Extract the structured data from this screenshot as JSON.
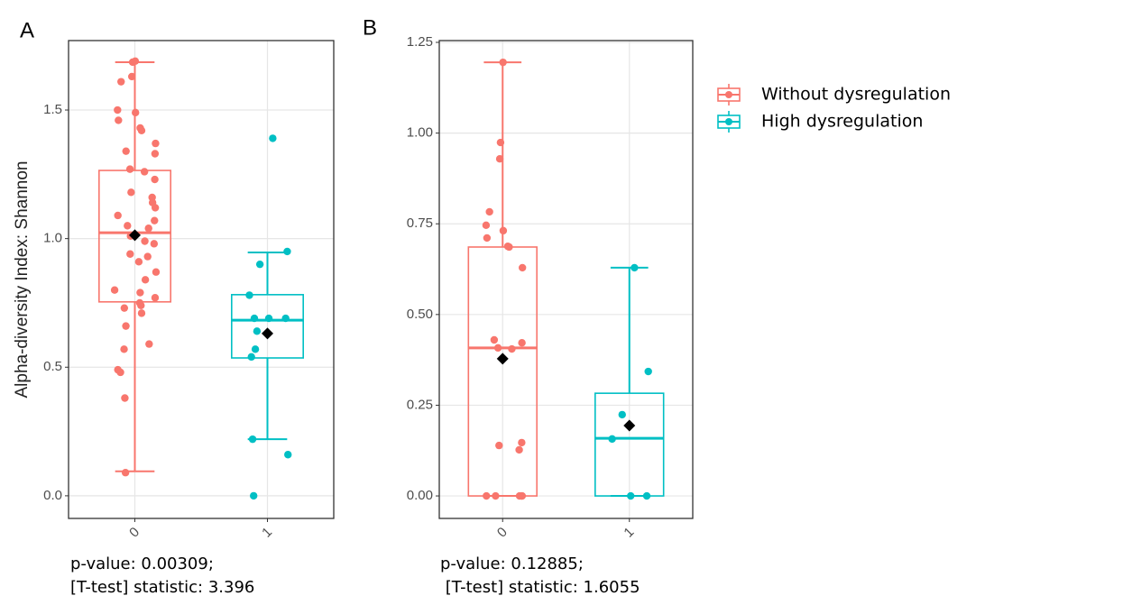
{
  "chart_data": [
    {
      "type": "box",
      "label": "A",
      "ylabel": "Alpha-diversity Index: Shannon",
      "categories": [
        "0",
        "1"
      ],
      "ylim": [
        -0.088,
        1.77
      ],
      "yticks": [
        {
          "value": 0,
          "label": "0.0"
        },
        {
          "value": 0.5,
          "label": "0.5"
        },
        {
          "value": 1,
          "label": "1.0"
        },
        {
          "value": 1.5,
          "label": "1.5"
        }
      ],
      "grid": true,
      "series": [
        {
          "color": "#f8766d",
          "whislo": 0.095,
          "q1": 0.754,
          "median": 1.023,
          "q3": 1.265,
          "whishi": 1.686,
          "mean": 1.013,
          "points": [
            1.69,
            1.686,
            1.63,
            1.61,
            1.5,
            1.49,
            1.46,
            1.43,
            1.42,
            1.37,
            1.34,
            1.33,
            1.27,
            1.26,
            1.23,
            1.18,
            1.16,
            1.14,
            1.12,
            1.09,
            1.07,
            1.05,
            1.04,
            1.01,
            0.99,
            0.98,
            0.94,
            0.93,
            0.91,
            0.87,
            0.84,
            0.8,
            0.79,
            0.77,
            0.75,
            0.74,
            0.73,
            0.71,
            0.66,
            0.59,
            0.57,
            0.49,
            0.48,
            0.38,
            0.09
          ]
        },
        {
          "color": "#00bfc4",
          "whislo": 0.22,
          "q1": 0.536,
          "median": 0.683,
          "q3": 0.782,
          "whishi": 0.946,
          "mean": 0.631,
          "points": [
            1.39,
            0.95,
            0.9,
            0.78,
            0.69,
            0.69,
            0.69,
            0.64,
            0.57,
            0.54,
            0.22,
            0.16,
            0
          ]
        }
      ],
      "annotations": [
        "p-value: 0.00309;",
        "[T-test] statistic: 3.396"
      ]
    },
    {
      "type": "box",
      "label": "B",
      "categories": [
        "0",
        "1"
      ],
      "ylim": [
        -0.062,
        1.255
      ],
      "yticks": [
        {
          "value": 0,
          "label": "0.00"
        },
        {
          "value": 0.25,
          "label": "0.25"
        },
        {
          "value": 0.5,
          "label": "0.50"
        },
        {
          "value": 0.75,
          "label": "0.75"
        },
        {
          "value": 1,
          "label": "1.00"
        },
        {
          "value": 1.25,
          "label": "1.25"
        }
      ],
      "grid": true,
      "legend": "right",
      "series": [
        {
          "name": "Without dysregulation",
          "color": "#f8766d",
          "whislo": 0,
          "q1": 0,
          "median": 0.408,
          "q3": 0.686,
          "whishi": 1.195,
          "mean": 0.378,
          "points": [
            1.195,
            0.974,
            0.929,
            0.783,
            0.746,
            0.731,
            0.711,
            0.688,
            0.686,
            0.629,
            0.43,
            0.422,
            0.408,
            0.405,
            0.147,
            0.139,
            0.127,
            0,
            0,
            0,
            0,
            0
          ]
        },
        {
          "name": "High dysregulation",
          "color": "#00bfc4",
          "whislo": 0,
          "q1": 0,
          "median": 0.159,
          "q3": 0.283,
          "whishi": 0.629,
          "mean": 0.194,
          "points": [
            0.629,
            0.343,
            0.224,
            0.157,
            0,
            0
          ]
        }
      ],
      "annotations": [
        "p-value: 0.12885;",
        " [T-test] statistic: 1.6055"
      ]
    }
  ]
}
